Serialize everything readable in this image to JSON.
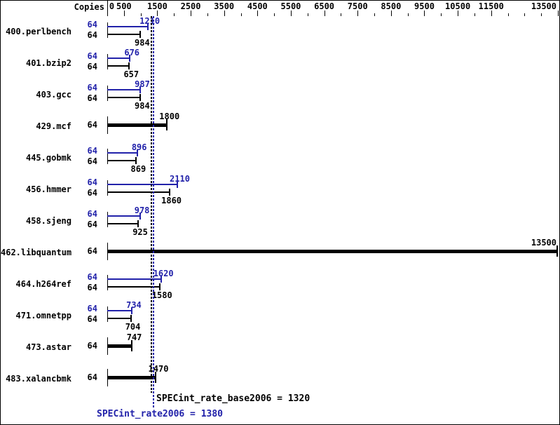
{
  "window": {
    "copies_header": "Copies"
  },
  "colors": {
    "peak_blue": "#2222aa",
    "base_black": "#000000",
    "background": "#ffffff",
    "border": "#000000"
  },
  "chart_data": {
    "type": "bar",
    "orientation": "horizontal",
    "title": "",
    "xlabel": "",
    "ylabel": "",
    "legend_position": "none",
    "grid": false,
    "axis": {
      "min": 0,
      "max": 13500,
      "labeled_ticks": [
        0,
        500,
        1500,
        2500,
        3500,
        4500,
        5500,
        6500,
        7500,
        8500,
        9500,
        10500,
        11500,
        13500
      ],
      "minor_ticks": [
        1000,
        2000,
        3000,
        4000,
        5000,
        6000,
        7000,
        8000,
        9000,
        10000,
        11000,
        12000,
        12500,
        13000
      ]
    },
    "series": [
      {
        "name": "SPECint_rate2006 (peak)",
        "color_key": "peak_blue"
      },
      {
        "name": "SPECint_rate_base2006 (base)",
        "color_key": "base_black"
      }
    ],
    "benchmarks": [
      {
        "name": "400.perlbench",
        "copies": "64",
        "peak": 1210,
        "base": 984
      },
      {
        "name": "401.bzip2",
        "copies": "64",
        "peak": 676,
        "base": 657
      },
      {
        "name": "403.gcc",
        "copies": "64",
        "peak": 987,
        "base": 984
      },
      {
        "name": "429.mcf",
        "copies": "64",
        "peak": null,
        "base": 1800
      },
      {
        "name": "445.gobmk",
        "copies": "64",
        "peak": 896,
        "base": 869
      },
      {
        "name": "456.hmmer",
        "copies": "64",
        "peak": 2110,
        "base": 1860
      },
      {
        "name": "458.sjeng",
        "copies": "64",
        "peak": 978,
        "base": 925
      },
      {
        "name": "462.libquantum",
        "copies": "64",
        "peak": null,
        "base": 13500
      },
      {
        "name": "464.h264ref",
        "copies": "64",
        "peak": 1620,
        "base": 1580
      },
      {
        "name": "471.omnetpp",
        "copies": "64",
        "peak": 734,
        "base": 704
      },
      {
        "name": "473.astar",
        "copies": "64",
        "peak": null,
        "base": 747
      },
      {
        "name": "483.xalancbmk",
        "copies": "64",
        "peak": null,
        "base": 1470
      }
    ],
    "summary": {
      "base_text": "SPECint_rate_base2006 = 1320",
      "base_value": 1320,
      "peak_text": "SPECint_rate2006 = 1380",
      "peak_value": 1380
    }
  }
}
